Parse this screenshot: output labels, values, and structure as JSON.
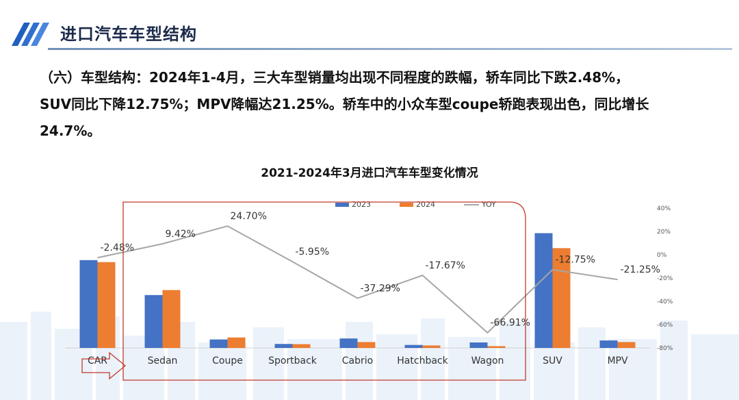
{
  "header": {
    "title": "进口汽车车型结构"
  },
  "paragraph": {
    "line1": "（六）车型结构：2024年1-4月，三大车型销量均出现不同程度的跌幅，轿车同比下跌2.48%，",
    "line2": "SUV同比下降12.75%；MPV降幅达21.25%。轿车中的小众车型coupe轿跑表现出色，同比增长",
    "line3": "24.7%。"
  },
  "colors": {
    "series_2023": "#4472c4",
    "series_2024": "#ed7d31",
    "yoy": "#a6a6a6",
    "highlight_box": "#c0392b",
    "header_stripe": "#1f5fbf"
  },
  "chart_data": {
    "type": "bar",
    "title": "2021-2024年3月进口汽车车型变化情况",
    "categories": [
      "CAR",
      "Sedan",
      "Coupe",
      "Sportback",
      "Cabrio",
      "Hatchback",
      "Wagon",
      "SUV",
      "MPV"
    ],
    "series": [
      {
        "name": "2023",
        "values": [
          88,
          53,
          8.5,
          4,
          9.5,
          3,
          5.5,
          115,
          7.5
        ]
      },
      {
        "name": "2024",
        "values": [
          86,
          58,
          10.5,
          3.8,
          5.9,
          2.5,
          1.8,
          100,
          5.9
        ]
      }
    ],
    "line_series": {
      "name": "YOY",
      "values": [
        -2.48,
        9.42,
        24.7,
        -5.95,
        -37.29,
        -17.67,
        -66.91,
        -12.75,
        -21.25
      ],
      "labels": [
        "-2.48%",
        "9.42%",
        "24.70%",
        "-5.95%",
        "-37.29%",
        "-17.67%",
        "-66.91%",
        "-12.75%",
        "-21.25%"
      ],
      "axis": "right"
    },
    "y_left_range": [
      0,
      140
    ],
    "y_right": {
      "range": [
        -80,
        40
      ],
      "ticks": [
        "40%",
        "20%",
        "0%",
        "-20%",
        "-40%",
        "-60%",
        "-80%"
      ]
    },
    "legend_position": "top",
    "grid": false
  }
}
